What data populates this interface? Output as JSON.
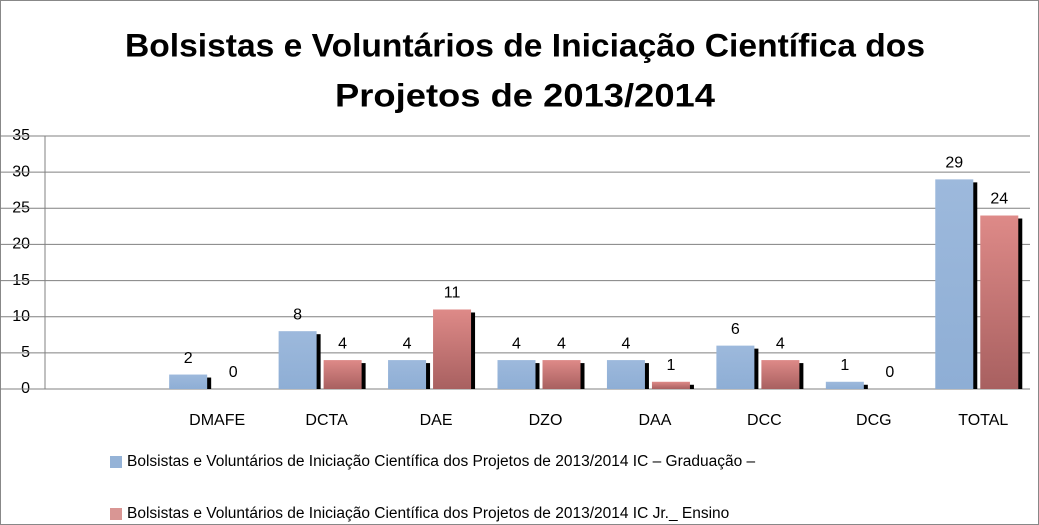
{
  "chart_data": {
    "type": "bar",
    "title": [
      "Bolsistas e Voluntários de Iniciação Científica dos",
      "Projetos de 2013/2014"
    ],
    "categories": [
      null,
      "DMAFE",
      "DCTA",
      "DAE",
      "DZO",
      "DAA",
      "DCC",
      "DCG",
      "TOTAL"
    ],
    "series": [
      {
        "name": "Bolsistas e Voluntários de Iniciação Científica dos Projetos de 2013/2014 IC – Graduação –",
        "color": "#95b3d7",
        "values": [
          null,
          2,
          8,
          4,
          4,
          4,
          6,
          1,
          29
        ]
      },
      {
        "name": "Bolsistas e Voluntários de Iniciação Científica dos Projetos de 2013/2014 IC Jr._ Ensino",
        "color": "#d99694",
        "values": [
          null,
          0,
          4,
          11,
          4,
          1,
          4,
          0,
          24
        ]
      }
    ],
    "ylim": [
      0,
      35
    ],
    "yticks": [
      0,
      5,
      10,
      15,
      20,
      25,
      30,
      35
    ],
    "grid": true,
    "legend": "bottom"
  }
}
